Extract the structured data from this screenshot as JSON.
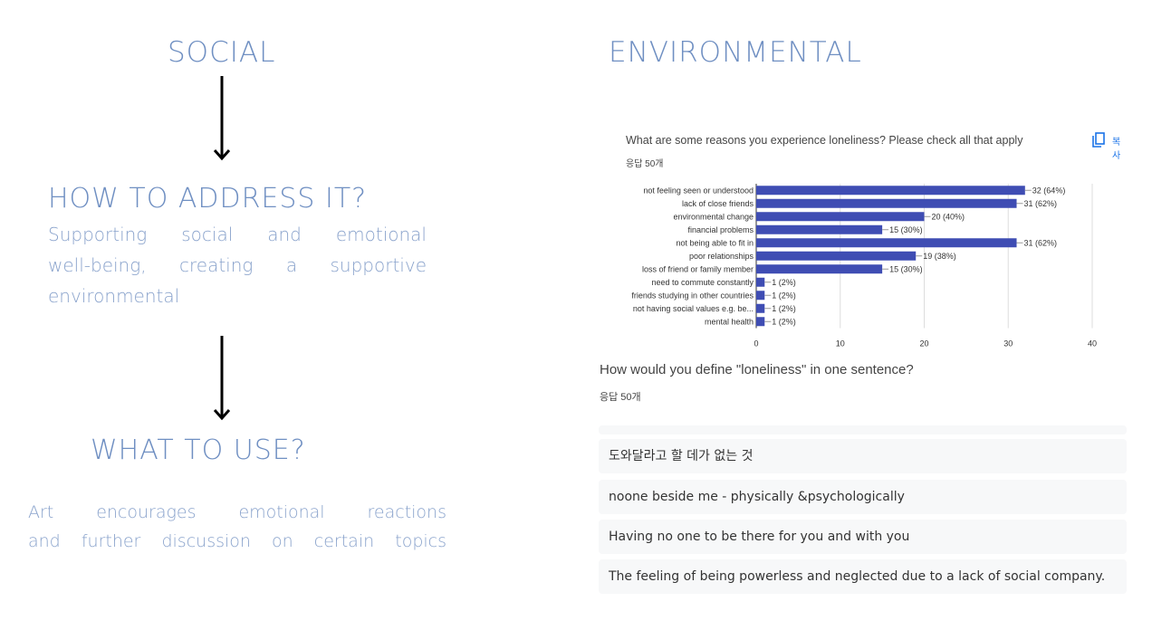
{
  "left": {
    "title": "SOCIAL",
    "address_heading": "HOW TO ADDRESS IT?",
    "address_lines": [
      "Supporting social and emotional",
      "well-being, creating a supportive",
      "environmental"
    ],
    "use_heading": "WHAT TO USE?",
    "use_lines": [
      "Art encourages emotional reactions",
      "and further discussion on certain topics"
    ]
  },
  "right": {
    "title": "ENVIRONMENTAL",
    "q1": {
      "title": "What are some reasons you experience loneliness? Please check all that apply",
      "responses": "응답 50개",
      "copy_icon": "copy-icon",
      "copy_label": "복사"
    },
    "q2": {
      "title": "How would you define \"loneliness\" in one sentence?",
      "responses": "응답 50개",
      "answers": [
        "도와달라고 할 데가 없는 것",
        "noone beside me - physically &psychologically",
        "Having no one to be there for you and with you",
        "The feeling of being powerless and neglected due to a lack of social company."
      ]
    }
  },
  "chart_data": {
    "type": "bar",
    "orientation": "horizontal",
    "categories": [
      "not feeling seen or understood",
      "lack of close friends",
      "environmental change",
      "financial problems",
      "not being able to fit in",
      "poor relationships",
      "loss of friend or family member",
      "need to commute constantly",
      "friends studying in other countries",
      "not having social values e.g. be...",
      "mental health"
    ],
    "values": [
      32,
      31,
      20,
      15,
      31,
      19,
      15,
      1,
      1,
      1,
      1
    ],
    "data_labels": [
      "32 (64%)",
      "31 (62%)",
      "20 (40%)",
      "15 (30%)",
      "31 (62%)",
      "19 (38%)",
      "15 (30%)",
      "1 (2%)",
      "1 (2%)",
      "1 (2%)",
      "1 (2%)"
    ],
    "xlim": [
      0,
      40
    ],
    "xticks": [
      0,
      10,
      20,
      30,
      40
    ],
    "grid": true,
    "bar_color": "#3f4db3"
  }
}
